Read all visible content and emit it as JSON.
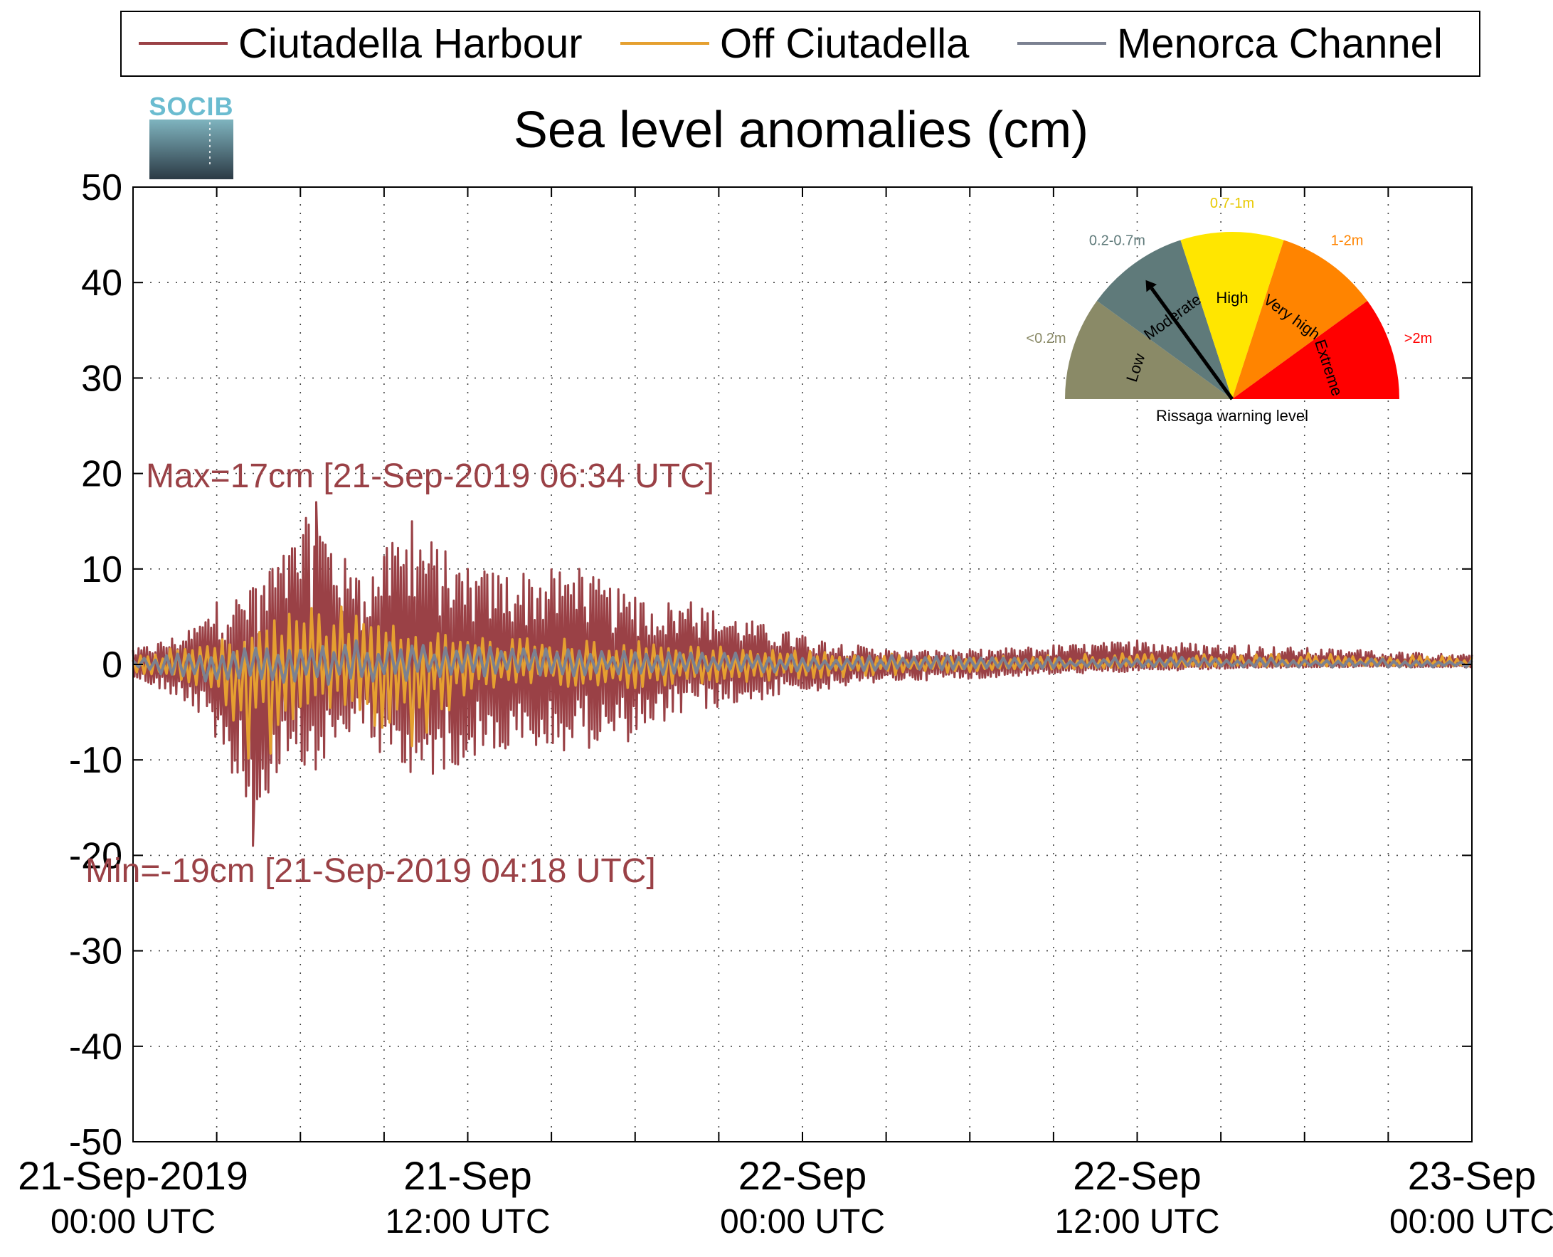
{
  "chart_data": {
    "type": "line",
    "title": "Sea level anomalies (cm)",
    "ylim": [
      -50,
      50
    ],
    "yticks": [
      50,
      40,
      30,
      20,
      10,
      0,
      -10,
      -20,
      -30,
      -40,
      -50
    ],
    "xlim": [
      "2019-09-21 00:00 UTC",
      "2019-09-23 00:00 UTC"
    ],
    "xticks": [
      {
        "date": "21-Sep-2019",
        "time": "00:00 UTC"
      },
      {
        "date": "21-Sep",
        "time": "12:00 UTC"
      },
      {
        "date": "22-Sep",
        "time": "00:00 UTC"
      },
      {
        "date": "22-Sep",
        "time": "12:00 UTC"
      },
      {
        "date": "23-Sep",
        "time": "00:00 UTC"
      }
    ],
    "grid": true,
    "legend_position": "top",
    "series": [
      {
        "name": "Ciutadella Harbour",
        "color": "#9a4146",
        "envelope": {
          "x": [
            "2019-09-21 00:00",
            "2019-09-21 02:00",
            "2019-09-21 03:00",
            "2019-09-21 04:18",
            "2019-09-21 05:00",
            "2019-09-21 06:34",
            "2019-09-21 08:00",
            "2019-09-21 10:00",
            "2019-09-21 12:00",
            "2019-09-21 16:00",
            "2019-09-21 18:00",
            "2019-09-21 20:00",
            "2019-09-22 00:00",
            "2019-09-22 03:00",
            "2019-09-22 06:00",
            "2019-09-22 09:00",
            "2019-09-22 12:00",
            "2019-09-22 16:00",
            "2019-09-22 20:00",
            "2019-09-23 00:00"
          ],
          "max": [
            1.5,
            3.5,
            6.5,
            8,
            10,
            17,
            9,
            15,
            10,
            10,
            7,
            6.5,
            3,
            1.5,
            1.5,
            2,
            2.5,
            2,
            1.5,
            1
          ],
          "min": [
            -1.5,
            -4,
            -8,
            -19,
            -14,
            -11,
            -7,
            -13,
            -10,
            -9,
            -8,
            -5,
            -3,
            -1.8,
            -1.5,
            -1,
            -0.8,
            -0.4,
            -0.3,
            -0.3
          ]
        }
      },
      {
        "name": "Off Ciutadella",
        "color": "#e5a030",
        "envelope": {
          "x": [
            "2019-09-21 00:00",
            "2019-09-21 03:00",
            "2019-09-21 04:18",
            "2019-09-21 06:34",
            "2019-09-21 10:00",
            "2019-09-21 12:00",
            "2019-09-21 18:00",
            "2019-09-22 00:00",
            "2019-09-22 06:00",
            "2019-09-22 12:00",
            "2019-09-22 18:00",
            "2019-09-23 00:00"
          ],
          "max": [
            1,
            2.5,
            4,
            7,
            4,
            3,
            2.5,
            1.5,
            0.8,
            1.2,
            1.2,
            0.8
          ],
          "min": [
            -1,
            -3,
            -12,
            -4,
            -9,
            -3,
            -2.5,
            -1.5,
            -0.8,
            -0.3,
            -0.2,
            -0.2
          ]
        }
      },
      {
        "name": "Menorca Channel",
        "color": "#7b8191",
        "envelope": {
          "x": [
            "2019-09-21 00:00",
            "2019-09-21 04:00",
            "2019-09-21 08:00",
            "2019-09-21 12:00",
            "2019-09-22 00:00",
            "2019-09-22 12:00",
            "2019-09-23 00:00"
          ],
          "max": [
            0.5,
            2,
            2.5,
            2,
            1,
            0.8,
            0.5
          ],
          "min": [
            -0.5,
            -2.5,
            -2,
            -1.5,
            -0.8,
            -0.3,
            -0.3
          ]
        }
      }
    ],
    "annotations": [
      {
        "text": "Max=17cm [21-Sep-2019 06:34 UTC]",
        "value": 17,
        "time": "2019-09-21 06:34 UTC"
      },
      {
        "text": "Min=-19cm [21-Sep-2019 04:18 UTC]",
        "value": -19,
        "time": "2019-09-21 04:18 UTC"
      }
    ]
  },
  "logo": {
    "text": "SOCIB"
  },
  "gauge": {
    "title": "Rissaga warning level",
    "needle_level": "Moderate",
    "sectors": [
      {
        "name": "Low",
        "range": "<0.2m",
        "color": "#8a8a67",
        "range_color": "#8a8a67"
      },
      {
        "name": "Moderate",
        "range": "0.2-0.7m",
        "color": "#5f7a7a",
        "range_color": "#5f7a7a"
      },
      {
        "name": "High",
        "range": "0.7-1m",
        "color": "#ffe600",
        "range_color": "#e8c900"
      },
      {
        "name": "Very high",
        "range": "1-2m",
        "color": "#ff8400",
        "range_color": "#ff8400"
      },
      {
        "name": "Extreme",
        "range": ">2m",
        "color": "#ff0000",
        "range_color": "#ff0000"
      }
    ]
  }
}
